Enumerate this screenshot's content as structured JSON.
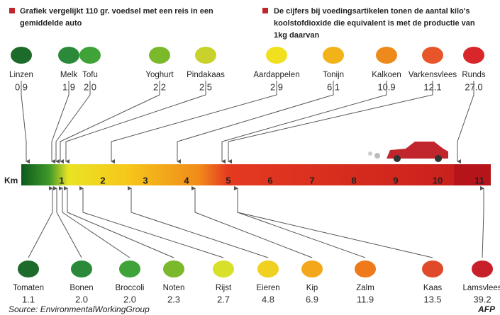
{
  "notes": [
    [
      "Grafiek vergelijkt 110 gr. voedsel met een reis in een",
      "gemiddelde auto"
    ],
    [
      "De cijfers bij voedingsartikelen tonen de aantal kilo's",
      "koolstofdioxide die equivalent is met de productie van",
      "1kg daarvan"
    ]
  ],
  "scale": {
    "unit": "Km",
    "ticks": [
      "1",
      "2",
      "3",
      "4",
      "5",
      "6",
      "7",
      "8",
      "9",
      "10",
      "11"
    ]
  },
  "top": [
    {
      "name": "Linzen",
      "value": "0.9"
    },
    {
      "name": "Melk",
      "value": "1.9"
    },
    {
      "name": "Tofu",
      "value": "2.0"
    },
    {
      "name": "Yoghurt",
      "value": "2.2"
    },
    {
      "name": "Pindakaas",
      "value": "2.5"
    },
    {
      "name": "Aardappelen",
      "value": "2.9"
    },
    {
      "name": "Tonijn",
      "value": "6.1"
    },
    {
      "name": "Kalkoen",
      "value": "10.9"
    },
    {
      "name": "Varkensvlees",
      "value": "12.1"
    },
    {
      "name": "Runds",
      "value": "27.0"
    }
  ],
  "bottom": [
    {
      "name": "Tomaten",
      "value": "1.1"
    },
    {
      "name": "Bonen",
      "value": "2.0"
    },
    {
      "name": "Broccoli",
      "value": "2.0"
    },
    {
      "name": "Noten",
      "value": "2.3"
    },
    {
      "name": "Rijst",
      "value": "2.7"
    },
    {
      "name": "Eieren",
      "value": "4.8"
    },
    {
      "name": "Kip",
      "value": "6.9"
    },
    {
      "name": "Zalm",
      "value": "11.9"
    },
    {
      "name": "Kaas",
      "value": "13.5"
    },
    {
      "name": "Lamsvlees",
      "value": "39.2"
    }
  ],
  "source": "Source: EnvironmentalWorkingGroup",
  "credit": "AFP"
}
